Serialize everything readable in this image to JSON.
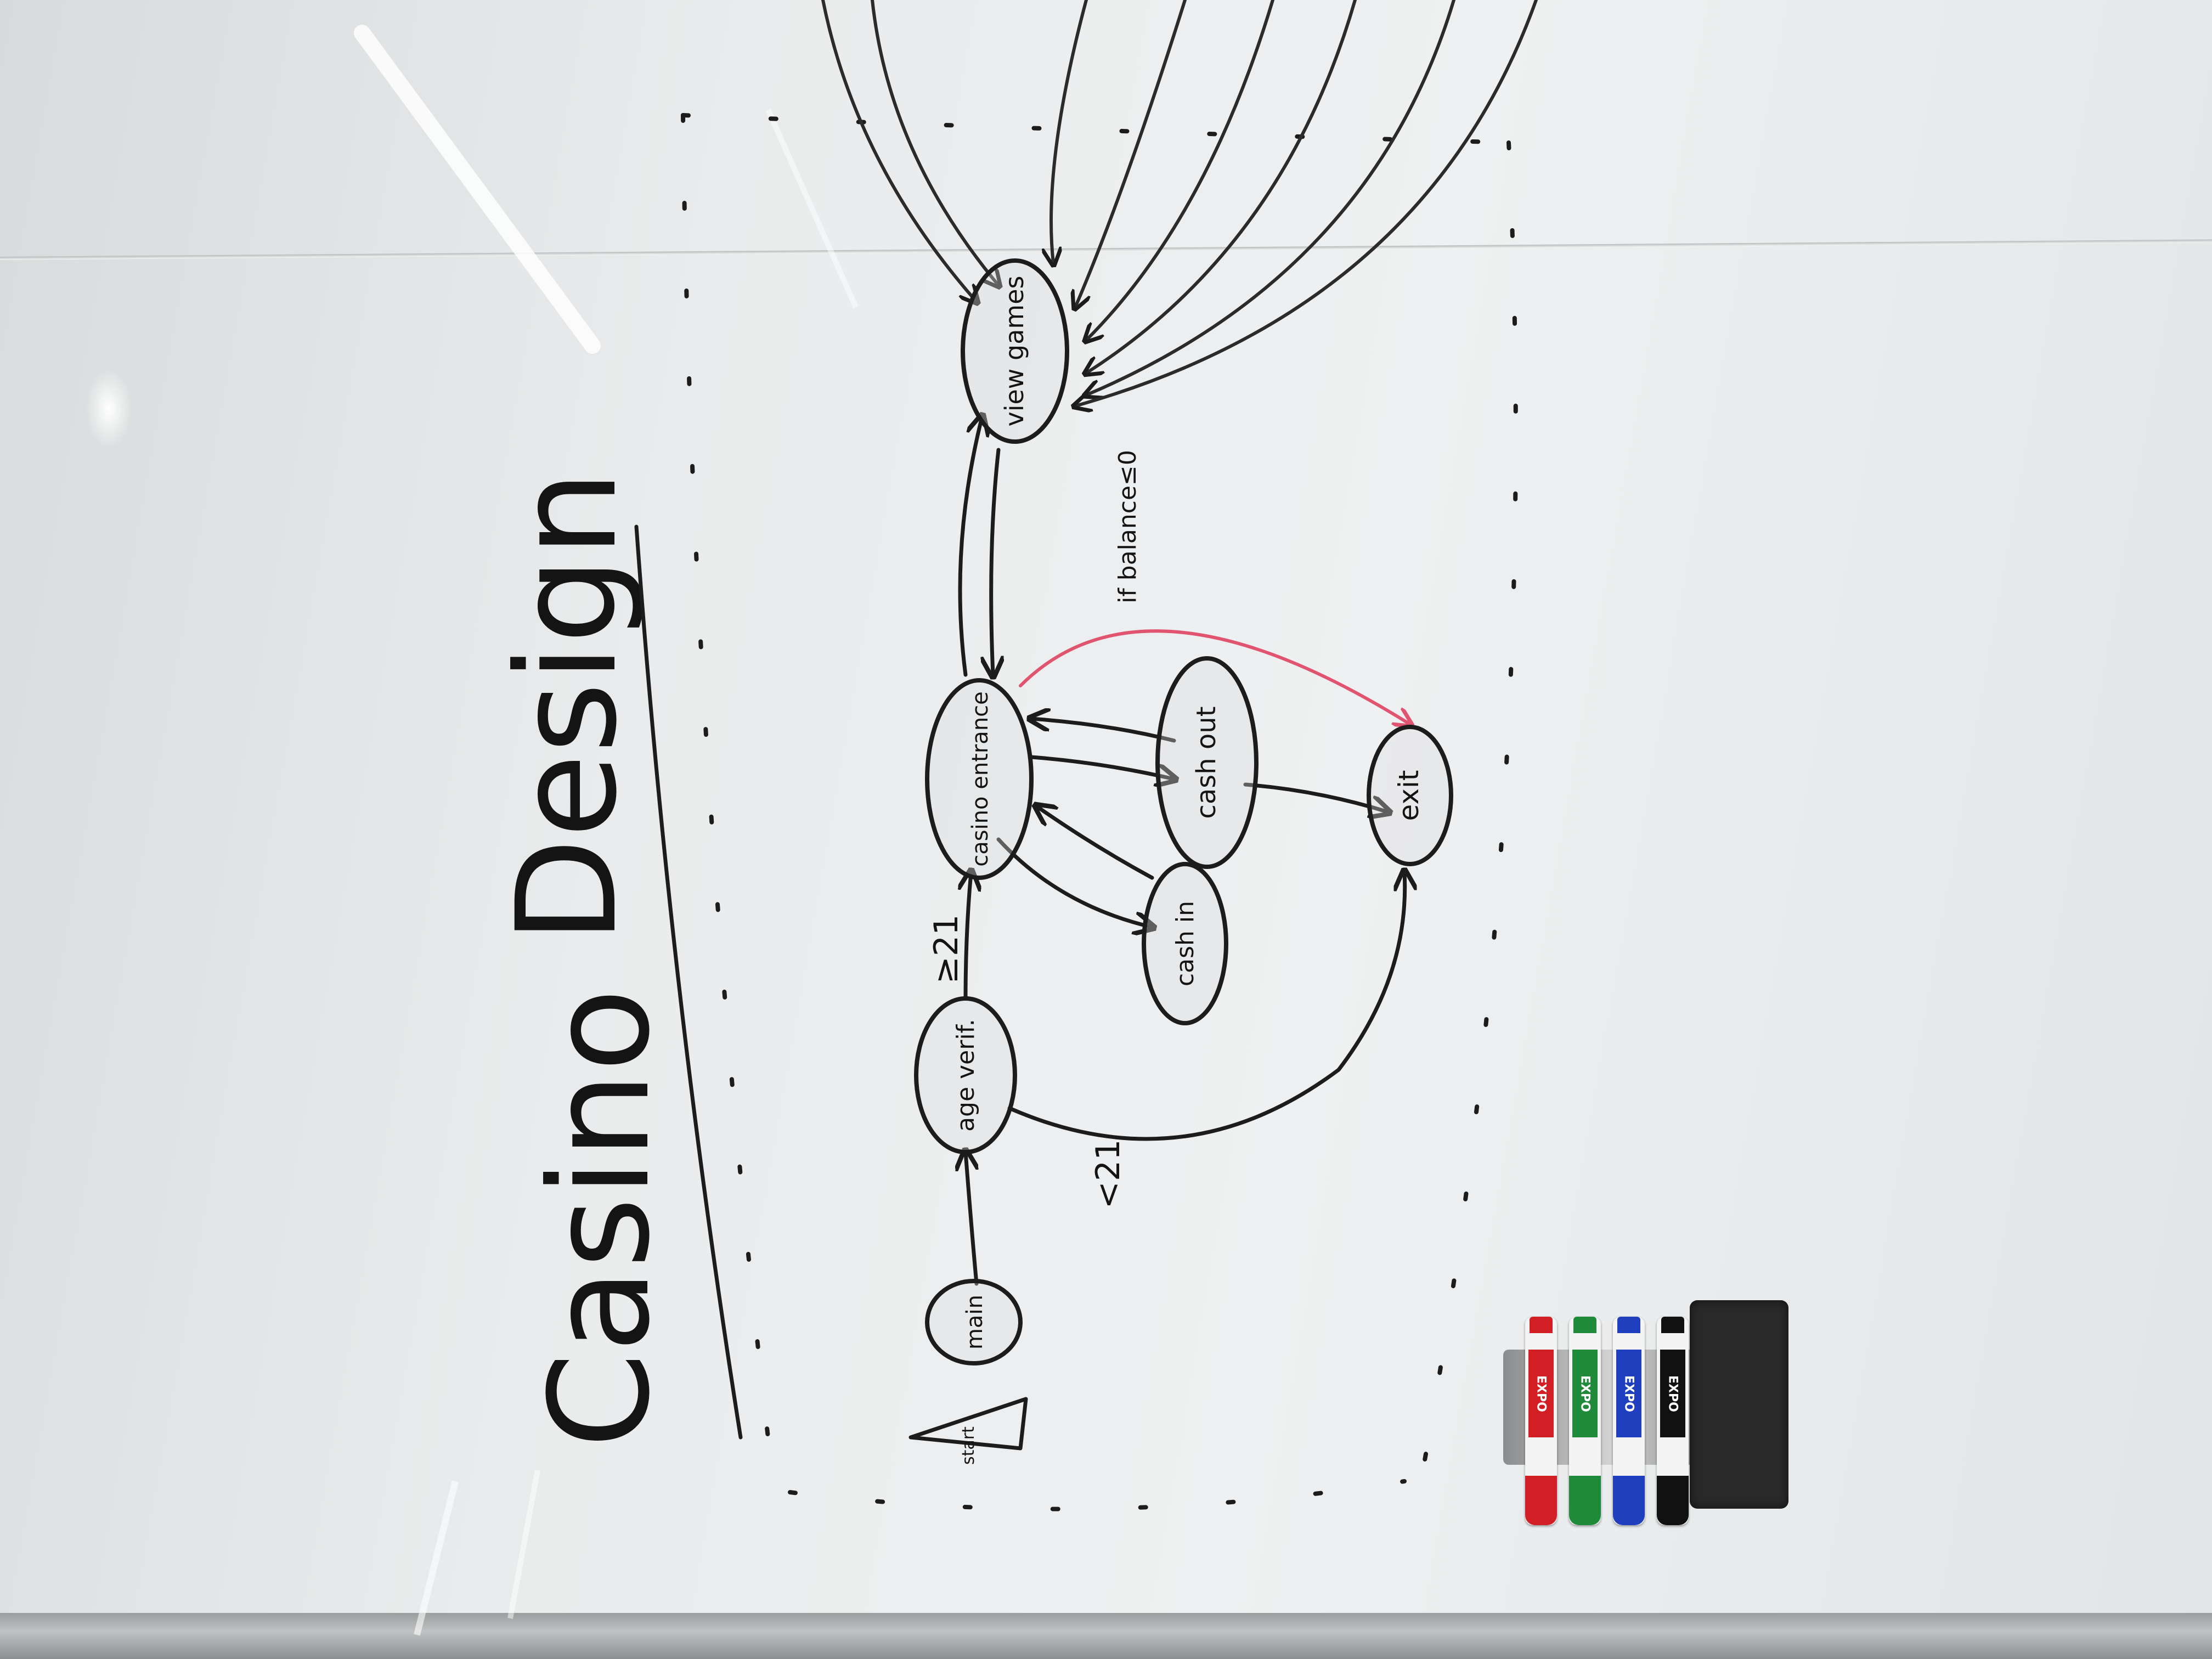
{
  "board": {
    "title_word_1": "Casino",
    "title_word_2": "Design"
  },
  "nodes": {
    "start": "start",
    "main": "main",
    "age_verification": "age verif.",
    "casino_entrance": "casino entrance",
    "cash_in": "cash in",
    "cash_out": "cash out",
    "exit": "exit",
    "view_games": "view games"
  },
  "edge_labels": {
    "age_ok": "≥21",
    "age_under": "<21",
    "balance_condition": "if balance≤0"
  },
  "supplies": {
    "markers": [
      {
        "brand": "EXPO",
        "color": "#d11f25"
      },
      {
        "brand": "EXPO",
        "color": "#1e8a3a"
      },
      {
        "brand": "EXPO",
        "color": "#1f3fbf"
      },
      {
        "brand": "EXPO",
        "color": "#111111"
      }
    ],
    "eraser_color": "#2a2a2a"
  }
}
